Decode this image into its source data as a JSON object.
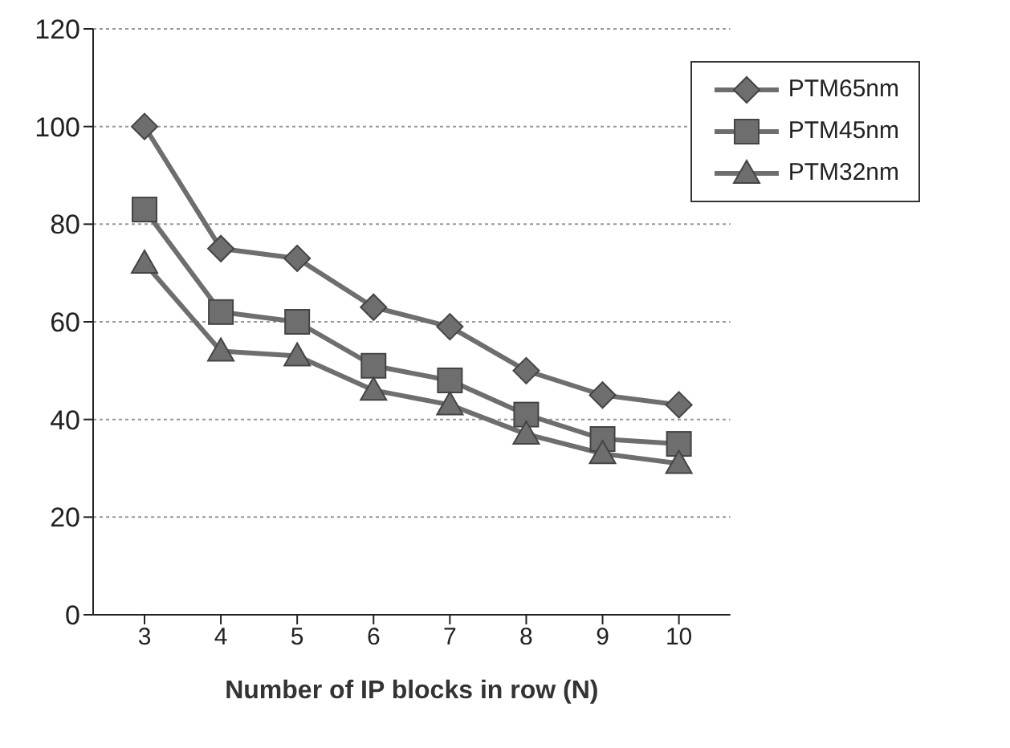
{
  "chart_data": {
    "type": "line",
    "xlabel": "Number of IP blocks in row (N)",
    "categories": [
      "3",
      "4",
      "5",
      "6",
      "7",
      "8",
      "9",
      "10"
    ],
    "ylim": [
      0,
      120
    ],
    "yticks": [
      0,
      20,
      40,
      60,
      80,
      100,
      120
    ],
    "grid": "y",
    "legend": "top right",
    "line_style": "solid",
    "series": [
      {
        "name": "PTM65nm",
        "color": "#6e6e6e",
        "marker": "diamond",
        "values": [
          100,
          75,
          73,
          63,
          59,
          50,
          45,
          43
        ]
      },
      {
        "name": "PTM45nm",
        "color": "#6e6e6e",
        "marker": "square",
        "values": [
          83,
          62,
          60,
          51,
          48,
          41,
          36,
          35
        ]
      },
      {
        "name": "PTM32nm",
        "color": "#6e6e6e",
        "marker": "triangle",
        "values": [
          72,
          54,
          53,
          46,
          43,
          37,
          33,
          31
        ]
      }
    ]
  }
}
